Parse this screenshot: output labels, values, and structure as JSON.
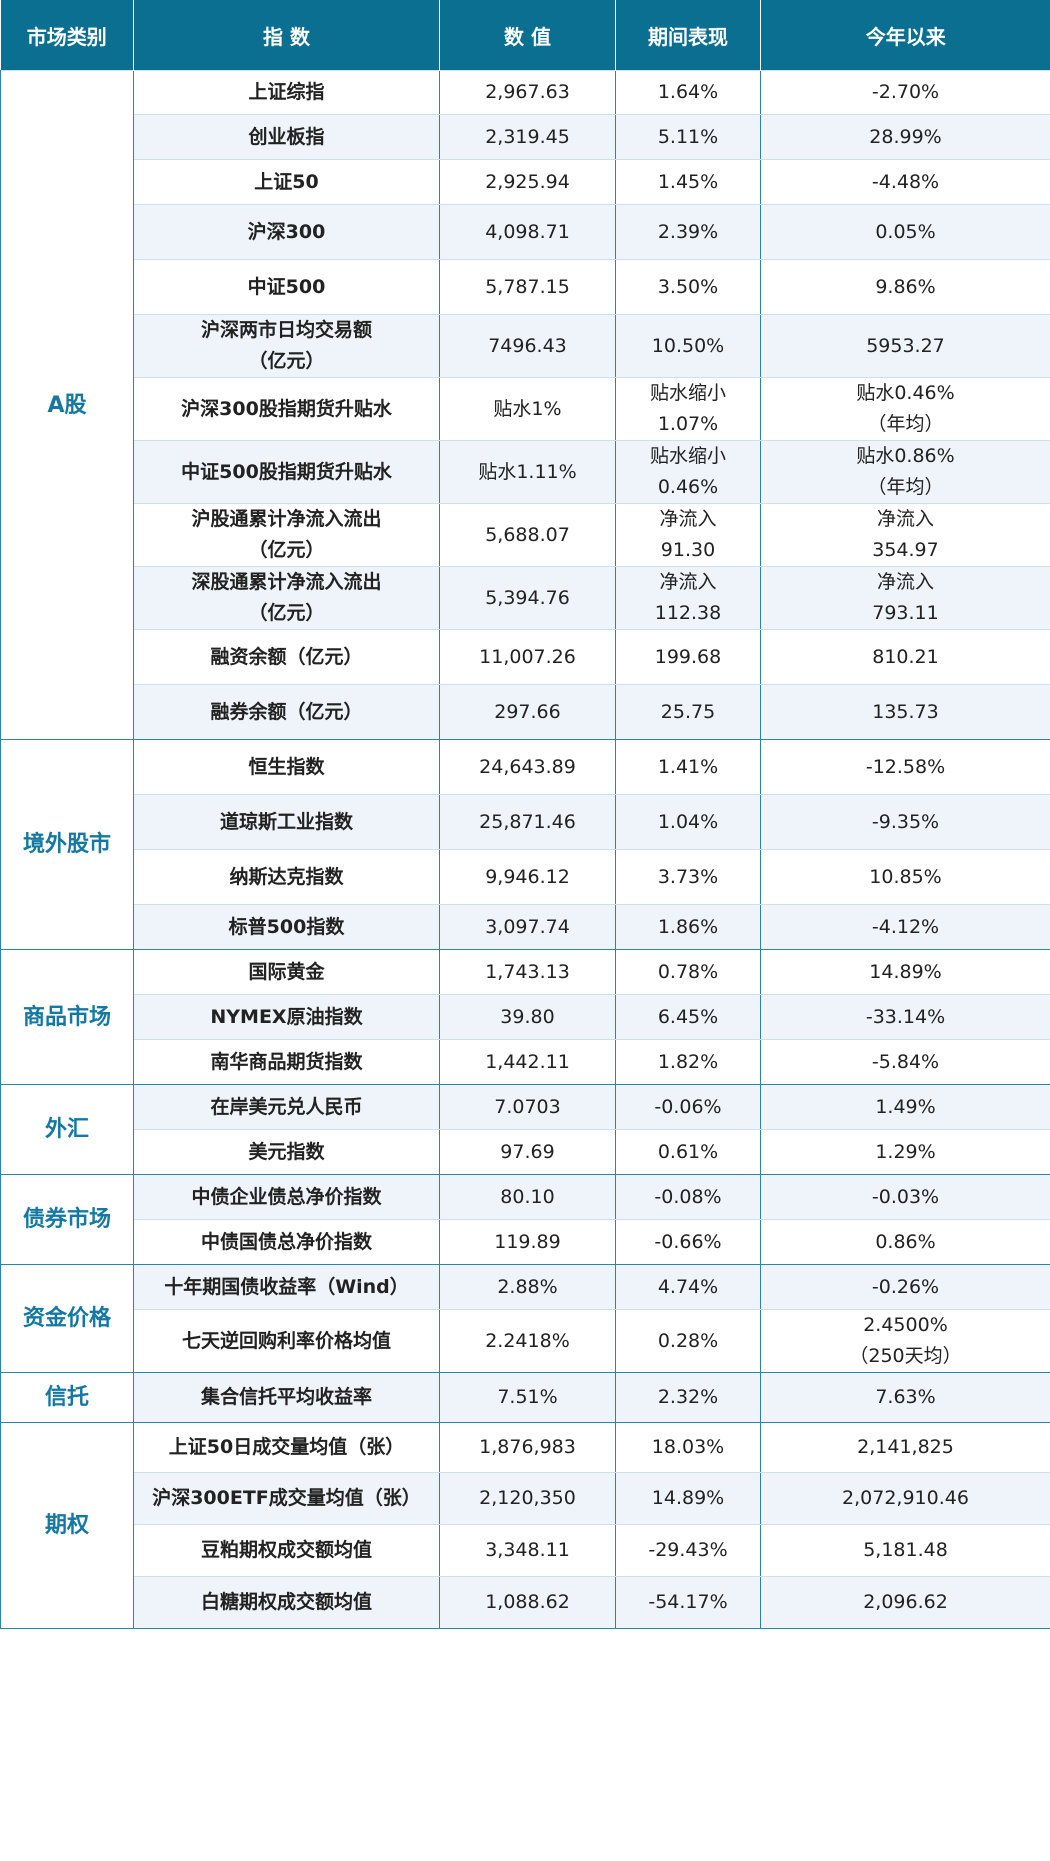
{
  "headers": [
    "市场类别",
    "指 数",
    "数 值",
    "期间表现",
    "今年以来"
  ],
  "groups": [
    {
      "category": "A股",
      "rows": [
        {
          "name": "上证综指",
          "value": "2,967.63",
          "period": "1.64%",
          "ytd": "-2.70%"
        },
        {
          "name": "创业板指",
          "value": "2,319.45",
          "period": "5.11%",
          "ytd": "28.99%"
        },
        {
          "name": "上证50",
          "value": "2,925.94",
          "period": "1.45%",
          "ytd": "-4.48%"
        },
        {
          "name": "沪深300",
          "value": "4,098.71",
          "period": "2.39%",
          "ytd": "0.05%"
        },
        {
          "name": "中证500",
          "value": "5,787.15",
          "period": "3.50%",
          "ytd": "9.86%"
        },
        {
          "name": "沪深两市日均交易额\n（亿元）",
          "value": "7496.43",
          "period": "10.50%",
          "ytd": "5953.27"
        },
        {
          "name": "沪深300股指期货升贴水",
          "value": "贴水1%",
          "period": "贴水缩小\n1.07%",
          "ytd": "贴水0.46%\n（年均）"
        },
        {
          "name": "中证500股指期货升贴水",
          "value": "贴水1.11%",
          "period": "贴水缩小\n0.46%",
          "ytd": "贴水0.86%\n（年均）"
        },
        {
          "name": "沪股通累计净流入流出\n（亿元）",
          "value": "5,688.07",
          "period": "净流入\n91.30",
          "ytd": "净流入\n354.97"
        },
        {
          "name": "深股通累计净流入流出\n（亿元）",
          "value": "5,394.76",
          "period": "净流入\n112.38",
          "ytd": "净流入\n793.11"
        },
        {
          "name": "融资余额（亿元）",
          "value": "11,007.26",
          "period": "199.68",
          "ytd": "810.21"
        },
        {
          "name": "融券余额（亿元）",
          "value": "297.66",
          "period": "25.75",
          "ytd": "135.73"
        }
      ]
    },
    {
      "category": "境外股市",
      "rows": [
        {
          "name": "恒生指数",
          "value": "24,643.89",
          "period": "1.41%",
          "ytd": "-12.58%"
        },
        {
          "name": "道琼斯工业指数",
          "value": "25,871.46",
          "period": "1.04%",
          "ytd": "-9.35%"
        },
        {
          "name": "纳斯达克指数",
          "value": "9,946.12",
          "period": "3.73%",
          "ytd": "10.85%"
        },
        {
          "name": "标普500指数",
          "value": "3,097.74",
          "period": "1.86%",
          "ytd": "-4.12%"
        }
      ]
    },
    {
      "category": "商品市场",
      "rows": [
        {
          "name": "国际黄金",
          "value": "1,743.13",
          "period": "0.78%",
          "ytd": "14.89%"
        },
        {
          "name": "NYMEX原油指数",
          "value": "39.80",
          "period": "6.45%",
          "ytd": "-33.14%"
        },
        {
          "name": "南华商品期货指数",
          "value": "1,442.11",
          "period": "1.82%",
          "ytd": "-5.84%"
        }
      ]
    },
    {
      "category": "外汇",
      "rows": [
        {
          "name": "在岸美元兑人民币",
          "value": "7.0703",
          "period": "-0.06%",
          "ytd": "1.49%"
        },
        {
          "name": "美元指数",
          "value": "97.69",
          "period": "0.61%",
          "ytd": "1.29%"
        }
      ]
    },
    {
      "category": "债券市场",
      "rows": [
        {
          "name": "中债企业债总净价指数",
          "value": "80.10",
          "period": "-0.08%",
          "ytd": "-0.03%"
        },
        {
          "name": "中债国债总净价指数",
          "value": "119.89",
          "period": "-0.66%",
          "ytd": "0.86%"
        }
      ]
    },
    {
      "category": "资金价格",
      "rows": [
        {
          "name": "十年期国债收益率（Wind）",
          "value": "2.88%",
          "period": "4.74%",
          "ytd": "-0.26%"
        },
        {
          "name": "七天逆回购利率价格均值",
          "value": "2.2418%",
          "period": "0.28%",
          "ytd": "2.4500%\n（250天均）"
        }
      ]
    },
    {
      "category": "信托",
      "rows": [
        {
          "name": "集合信托平均收益率",
          "value": "7.51%",
          "period": "2.32%",
          "ytd": "7.63%"
        }
      ]
    },
    {
      "category": "期权",
      "rows": [
        {
          "name": "上证50日成交量均值（张）",
          "value": "1,876,983",
          "period": "18.03%",
          "ytd": "2,141,825"
        },
        {
          "name": "沪深300ETF成交量均值（张）",
          "value": "2,120,350",
          "period": "14.89%",
          "ytd": "2,072,910.46"
        },
        {
          "name": "豆粕期权成交额均值",
          "value": "3,348.11",
          "period": "-29.43%",
          "ytd": "5,181.48"
        },
        {
          "name": "白糖期权成交额均值",
          "value": "1,088.62",
          "period": "-54.17%",
          "ytd": "2,096.62"
        }
      ]
    }
  ]
}
